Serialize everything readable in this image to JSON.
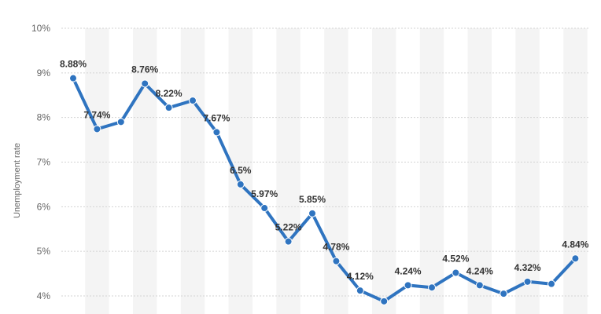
{
  "chart_data": {
    "type": "line",
    "title": "",
    "xlabel": "",
    "ylabel": "Unemployment rate",
    "ylim": [
      4,
      10
    ],
    "y_ticks": [
      {
        "value": 4,
        "label": "4%"
      },
      {
        "value": 5,
        "label": "5%"
      },
      {
        "value": 6,
        "label": "6%"
      },
      {
        "value": 7,
        "label": "7%"
      },
      {
        "value": 8,
        "label": "8%"
      },
      {
        "value": 9,
        "label": "9%"
      },
      {
        "value": 10,
        "label": "10%"
      }
    ],
    "grid": true,
    "line_color": "#2f74c0",
    "points": [
      {
        "y": 8.88,
        "label": "8.88%"
      },
      {
        "y": 7.74,
        "label": "7.74%"
      },
      {
        "y": 7.9,
        "label": ""
      },
      {
        "y": 8.76,
        "label": "8.76%"
      },
      {
        "y": 8.22,
        "label": "8.22%"
      },
      {
        "y": 8.38,
        "label": ""
      },
      {
        "y": 7.67,
        "label": "7.67%"
      },
      {
        "y": 6.5,
        "label": "6.5%"
      },
      {
        "y": 5.97,
        "label": "5.97%"
      },
      {
        "y": 5.22,
        "label": "5.22%"
      },
      {
        "y": 5.85,
        "label": "5.85%"
      },
      {
        "y": 4.78,
        "label": "4.78%"
      },
      {
        "y": 4.12,
        "label": "4.12%"
      },
      {
        "y": 3.88,
        "label": ""
      },
      {
        "y": 4.24,
        "label": "4.24%"
      },
      {
        "y": 4.19,
        "label": ""
      },
      {
        "y": 4.52,
        "label": "4.52%"
      },
      {
        "y": 4.24,
        "label": "4.24%"
      },
      {
        "y": 4.05,
        "label": ""
      },
      {
        "y": 4.32,
        "label": "4.32%"
      },
      {
        "y": 4.27,
        "label": ""
      },
      {
        "y": 4.84,
        "label": "4.84%"
      }
    ]
  }
}
